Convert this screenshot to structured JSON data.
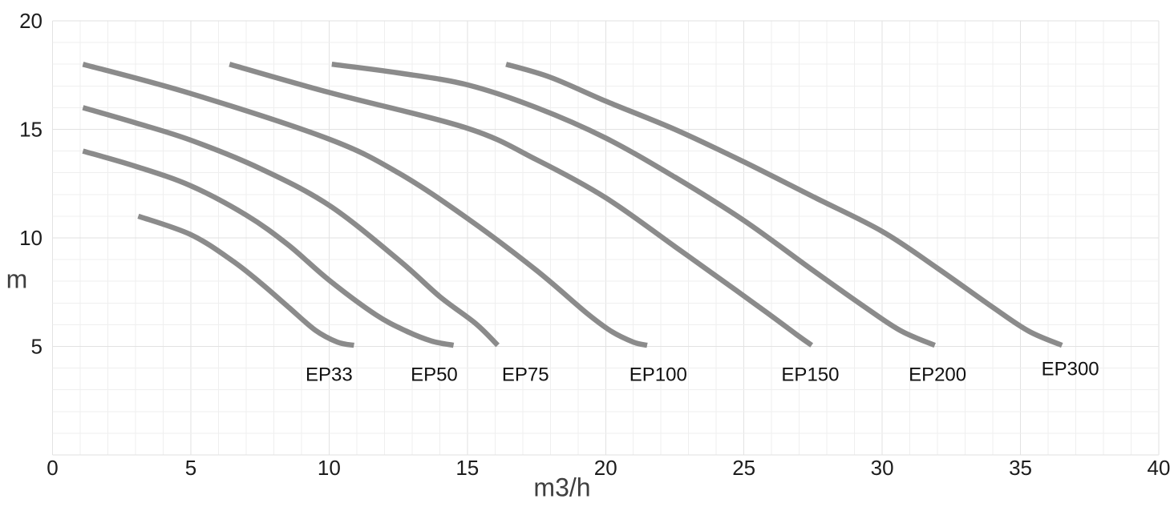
{
  "chart_data": {
    "type": "line",
    "title": "",
    "xlabel": "m3/h",
    "ylabel": "m",
    "xlim": [
      0,
      40
    ],
    "ylim": [
      0,
      20
    ],
    "x_ticks": [
      0,
      5,
      10,
      15,
      20,
      25,
      30,
      35,
      40
    ],
    "y_ticks": [
      5,
      10,
      15,
      20
    ],
    "grid": "on",
    "grid_minor_step": 1,
    "grid_major_step": 5,
    "legend_position": "labels-below-curve-ends",
    "line_color": "#8b8b8b",
    "grid_minor_color": "#efefef",
    "grid_major_color": "#e2e2e2",
    "tick_label_color": "#1c1c1c",
    "series": [
      {
        "name": "EP33",
        "label_x": 10.0,
        "label_y": 3.75,
        "points": [
          [
            3.1,
            11
          ],
          [
            5,
            10.15
          ],
          [
            6.5,
            8.95
          ],
          [
            7.5,
            7.95
          ],
          [
            8.5,
            6.85
          ],
          [
            9.5,
            5.75
          ],
          [
            10.3,
            5.2
          ],
          [
            10.9,
            5.05
          ]
        ]
      },
      {
        "name": "EP50",
        "label_x": 13.8,
        "label_y": 3.75,
        "points": [
          [
            1.1,
            14
          ],
          [
            3,
            13.3
          ],
          [
            5,
            12.4
          ],
          [
            7,
            11.05
          ],
          [
            8.5,
            9.7
          ],
          [
            10,
            8.05
          ],
          [
            11.7,
            6.45
          ],
          [
            12.8,
            5.7
          ],
          [
            13.7,
            5.25
          ],
          [
            14.5,
            5.05
          ]
        ]
      },
      {
        "name": "EP75",
        "label_x": 17.1,
        "label_y": 3.75,
        "points": [
          [
            1.1,
            16
          ],
          [
            3,
            15.3
          ],
          [
            5,
            14.5
          ],
          [
            7.5,
            13.2
          ],
          [
            10,
            11.5
          ],
          [
            12.5,
            9.0
          ],
          [
            14,
            7.3
          ],
          [
            15.3,
            6.05
          ],
          [
            16.1,
            5.05
          ]
        ]
      },
      {
        "name": "EP100",
        "label_x": 21.9,
        "label_y": 3.75,
        "points": [
          [
            1.1,
            18
          ],
          [
            5,
            16.65
          ],
          [
            10,
            14.55
          ],
          [
            12.5,
            13.0
          ],
          [
            15,
            10.9
          ],
          [
            17.5,
            8.5
          ],
          [
            19.3,
            6.55
          ],
          [
            20.2,
            5.7
          ],
          [
            21,
            5.2
          ],
          [
            21.5,
            5.05
          ]
        ]
      },
      {
        "name": "EP150",
        "label_x": 27.4,
        "label_y": 3.75,
        "points": [
          [
            6.4,
            18
          ],
          [
            10,
            16.7
          ],
          [
            15,
            15.05
          ],
          [
            17.5,
            13.6
          ],
          [
            20,
            11.85
          ],
          [
            22.5,
            9.6
          ],
          [
            24.7,
            7.6
          ],
          [
            26,
            6.4
          ],
          [
            26.9,
            5.55
          ],
          [
            27.45,
            5.05
          ]
        ]
      },
      {
        "name": "EP200",
        "label_x": 32.0,
        "label_y": 3.75,
        "points": [
          [
            10.1,
            18
          ],
          [
            12.5,
            17.6
          ],
          [
            15,
            17.05
          ],
          [
            17.5,
            16.0
          ],
          [
            20,
            14.6
          ],
          [
            22.5,
            12.8
          ],
          [
            25,
            10.8
          ],
          [
            27.5,
            8.5
          ],
          [
            29.5,
            6.7
          ],
          [
            30.7,
            5.7
          ],
          [
            31.9,
            5.05
          ]
        ]
      },
      {
        "name": "EP300",
        "label_x": 36.8,
        "label_y": 4.0,
        "points": [
          [
            16.4,
            18
          ],
          [
            18,
            17.4
          ],
          [
            20,
            16.3
          ],
          [
            22.5,
            15.0
          ],
          [
            25,
            13.5
          ],
          [
            27.5,
            11.9
          ],
          [
            30,
            10.3
          ],
          [
            32,
            8.6
          ],
          [
            34,
            6.8
          ],
          [
            35.3,
            5.7
          ],
          [
            36.5,
            5.05
          ]
        ]
      }
    ]
  }
}
